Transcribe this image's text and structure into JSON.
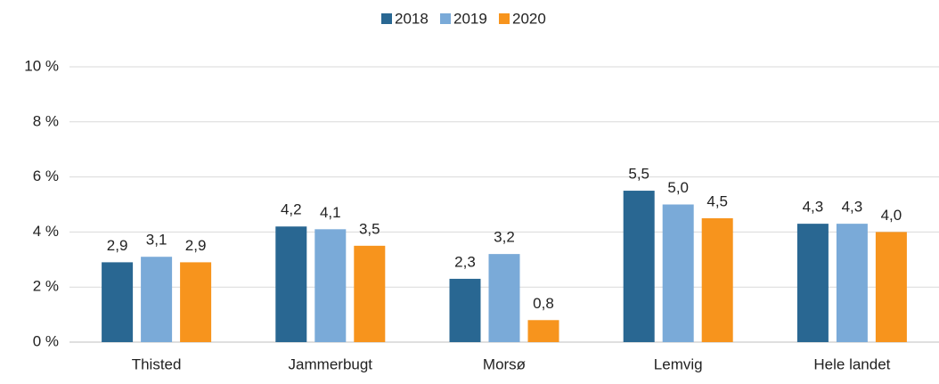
{
  "chart_data": {
    "type": "bar",
    "categories": [
      "Thisted",
      "Jammerbugt",
      "Morsø",
      "Lemvig",
      "Hele landet"
    ],
    "series": [
      {
        "name": "2018",
        "color": "#296792",
        "values": [
          2.9,
          4.2,
          2.3,
          5.5,
          4.3
        ],
        "value_labels": [
          "2,9",
          "4,2",
          "2,3",
          "5,5",
          "4,3"
        ]
      },
      {
        "name": "2019",
        "color": "#7aaad8",
        "values": [
          3.1,
          4.1,
          3.2,
          5.0,
          4.3
        ],
        "value_labels": [
          "3,1",
          "4,1",
          "3,2",
          "5,0",
          "4,3"
        ]
      },
      {
        "name": "2020",
        "color": "#f7941d",
        "values": [
          2.9,
          3.5,
          0.8,
          4.5,
          4.0
        ],
        "value_labels": [
          "2,9",
          "3,5",
          "0,8",
          "4,5",
          "4,0"
        ]
      }
    ],
    "ylim": [
      0,
      10
    ],
    "yticks": [
      {
        "value": 0,
        "label": "0 %"
      },
      {
        "value": 2,
        "label": "2 %"
      },
      {
        "value": 4,
        "label": "4 %"
      },
      {
        "value": 6,
        "label": "6 %"
      },
      {
        "value": 8,
        "label": "8 %"
      },
      {
        "value": 10,
        "label": "10 %"
      }
    ],
    "grid": true,
    "legend": "top"
  }
}
